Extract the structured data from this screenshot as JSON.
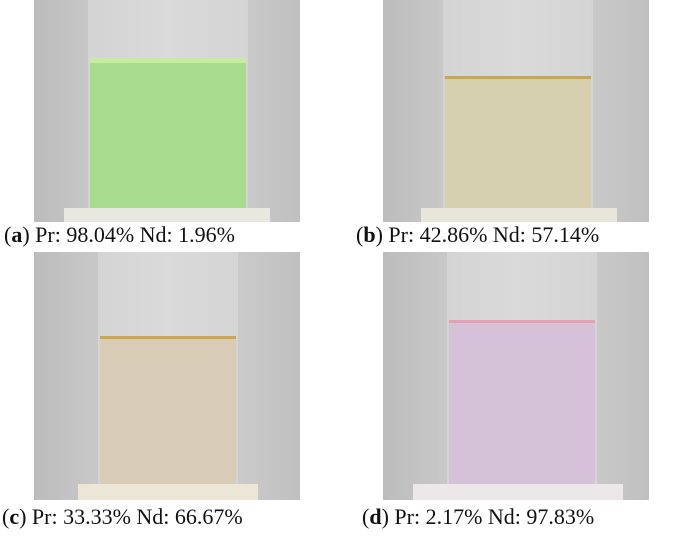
{
  "figure": {
    "panels": [
      {
        "caption": [
          "(",
          "a",
          ") Pr: 98.04% Nd: 1.96%"
        ]
      },
      {
        "caption": [
          "(",
          "b",
          ") Pr: 42.86% Nd: 57.14%"
        ]
      },
      {
        "caption": [
          "(",
          "c",
          ") Pr: 33.33% Nd: 66.67%"
        ]
      },
      {
        "caption": [
          "(",
          "d",
          ") Pr: 2.17% Nd: 97.83%"
        ]
      }
    ]
  }
}
